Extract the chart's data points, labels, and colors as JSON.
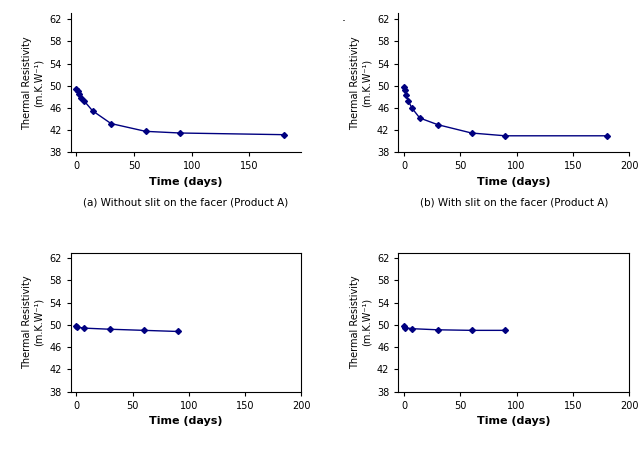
{
  "subplots": [
    {
      "caption": "(a) Without slit on the facer (Product A)",
      "x": [
        0,
        1,
        2,
        4,
        7,
        14,
        30,
        60,
        90,
        180
      ],
      "y": [
        49.5,
        49.0,
        48.5,
        47.8,
        47.2,
        45.5,
        43.2,
        41.8,
        41.5,
        41.2
      ],
      "xlim": [
        -5,
        195
      ],
      "ylim": [
        38,
        63
      ],
      "yticks": [
        38,
        42,
        46,
        50,
        54,
        58,
        62
      ],
      "xticks": [
        0,
        50,
        100,
        150
      ],
      "box": false
    },
    {
      "caption": "(b) With slit on the facer (Product A)",
      "x": [
        0,
        1,
        2,
        4,
        7,
        14,
        30,
        60,
        90,
        180
      ],
      "y": [
        49.8,
        49.2,
        48.3,
        47.2,
        46.0,
        44.2,
        43.0,
        41.5,
        41.0,
        41.0
      ],
      "xlim": [
        -5,
        200
      ],
      "ylim": [
        38,
        63
      ],
      "yticks": [
        38,
        42,
        46,
        50,
        54,
        58,
        62
      ],
      "xticks": [
        0,
        50,
        100,
        150,
        200
      ],
      "box": false
    },
    {
      "caption": "",
      "x": [
        0,
        1,
        7,
        30,
        60,
        90
      ],
      "y": [
        49.8,
        49.6,
        49.4,
        49.2,
        49.0,
        48.8
      ],
      "xlim": [
        -5,
        200
      ],
      "ylim": [
        38,
        63
      ],
      "yticks": [
        38,
        42,
        46,
        50,
        54,
        58,
        62
      ],
      "xticks": [
        0,
        50,
        100,
        150,
        200
      ],
      "box": true
    },
    {
      "caption": "",
      "x": [
        0,
        1,
        7,
        30,
        60,
        90
      ],
      "y": [
        49.8,
        49.5,
        49.3,
        49.1,
        49.0,
        49.0
      ],
      "xlim": [
        -5,
        200
      ],
      "ylim": [
        38,
        63
      ],
      "yticks": [
        38,
        42,
        46,
        50,
        54,
        58,
        62
      ],
      "xticks": [
        0,
        50,
        100,
        150,
        200
      ],
      "box": true
    }
  ],
  "line_color": "#000080",
  "marker": "D",
  "marker_size": 3,
  "linewidth": 1.0,
  "ylabel": "Thermal Resistivity\n(m.K.W⁻¹)",
  "xlabel": "Time (days)",
  "xlabel_fontsize": 8,
  "xlabel_fontweight": "bold",
  "ylabel_fontsize": 7,
  "tick_fontsize": 7,
  "caption_fontsize": 7.5,
  "dot_top_right": ".",
  "background_color": "#ffffff"
}
